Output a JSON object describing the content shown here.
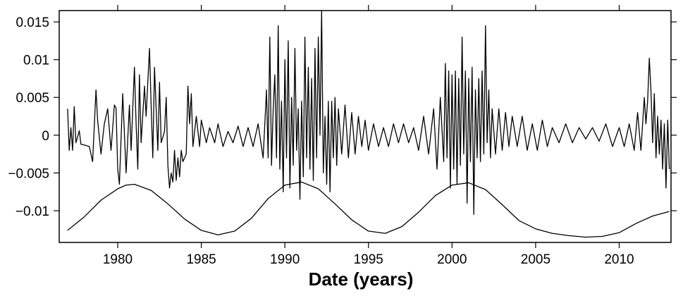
{
  "chart_data": {
    "type": "line",
    "title": "",
    "xlabel": "Date (years)",
    "ylabel": "",
    "xlim": [
      1976.5,
      2013.1
    ],
    "ylim": [
      -0.0142,
      0.0165
    ],
    "x_ticks": [
      1980,
      1985,
      1990,
      1995,
      2000,
      2005,
      2010
    ],
    "x_tick_labels": [
      "1980",
      "1985",
      "1990",
      "1995",
      "2000",
      "2005",
      "2010"
    ],
    "y_ticks": [
      0.015,
      0.01,
      0.005,
      0,
      -0.005,
      -0.01
    ],
    "y_tick_labels": [
      "0.015",
      "0.01",
      "0.005",
      "0",
      "−0.005",
      "−0.01"
    ],
    "grid": false,
    "legend": "none",
    "colors": {
      "line": "#000000",
      "frame": "#000000",
      "background": "#ffffff"
    },
    "series": [
      {
        "points": [
          [
            1977.0,
            0.0035
          ],
          [
            1977.1,
            -0.002
          ],
          [
            1977.2,
            0.001
          ],
          [
            1977.3,
            -0.002
          ],
          [
            1977.4,
            0.0038
          ],
          [
            1977.5,
            -0.001
          ],
          [
            1977.7,
            0.0006
          ],
          [
            1977.8,
            -0.0012
          ],
          [
            1978.0,
            -0.0013
          ],
          [
            1978.3,
            -0.0015
          ],
          [
            1978.5,
            -0.0035
          ],
          [
            1978.7,
            0.006
          ],
          [
            1978.8,
            0.002
          ],
          [
            1979.0,
            -0.0025
          ],
          [
            1979.2,
            0.0015
          ],
          [
            1979.4,
            0.0035
          ],
          [
            1979.6,
            -0.002
          ],
          [
            1979.8,
            0.004
          ],
          [
            1979.9,
            0.0036
          ],
          [
            1980.0,
            -0.0045
          ],
          [
            1980.1,
            -0.0065
          ],
          [
            1980.3,
            0.0055
          ],
          [
            1980.5,
            -0.005
          ],
          [
            1980.7,
            0.004
          ],
          [
            1980.8,
            -0.002
          ],
          [
            1981.0,
            0.009
          ],
          [
            1981.1,
            0.0015
          ],
          [
            1981.2,
            -0.0045
          ],
          [
            1981.3,
            0.008
          ],
          [
            1981.4,
            -0.001
          ],
          [
            1981.6,
            0.0065
          ],
          [
            1981.7,
            0.0025
          ],
          [
            1981.9,
            0.0115
          ],
          [
            1982.0,
            0.004
          ],
          [
            1982.1,
            -0.003
          ],
          [
            1982.2,
            0.009
          ],
          [
            1982.4,
            -0.002
          ],
          [
            1982.5,
            0.007
          ],
          [
            1982.6,
            -0.001
          ],
          [
            1982.8,
            0.0005
          ],
          [
            1982.9,
            0.005
          ],
          [
            1983.0,
            -0.004
          ],
          [
            1983.1,
            -0.007
          ],
          [
            1983.2,
            -0.005
          ],
          [
            1983.3,
            -0.0062
          ],
          [
            1983.4,
            -0.002
          ],
          [
            1983.5,
            -0.006
          ],
          [
            1983.6,
            -0.003
          ],
          [
            1983.7,
            -0.0055
          ],
          [
            1983.8,
            -0.002
          ],
          [
            1983.9,
            -0.0035
          ],
          [
            1984.0,
            -0.003
          ],
          [
            1984.1,
            -0.0025
          ],
          [
            1984.2,
            0.0065
          ],
          [
            1984.3,
            0.0015
          ],
          [
            1984.4,
            0.0055
          ],
          [
            1984.5,
            -0.0015
          ],
          [
            1984.7,
            0.0025
          ],
          [
            1984.9,
            -0.0015
          ],
          [
            1985.0,
            0.002
          ],
          [
            1985.3,
            -0.001
          ],
          [
            1985.5,
            0.001
          ],
          [
            1985.8,
            -0.001
          ],
          [
            1986.0,
            0.0015
          ],
          [
            1986.3,
            -0.0015
          ],
          [
            1986.6,
            0.0005
          ],
          [
            1986.9,
            -0.001
          ],
          [
            1987.2,
            0.0012
          ],
          [
            1987.5,
            -0.0015
          ],
          [
            1987.8,
            0.001
          ],
          [
            1988.1,
            -0.0015
          ],
          [
            1988.4,
            0.0015
          ],
          [
            1988.7,
            -0.003
          ],
          [
            1988.9,
            0.006
          ],
          [
            1989.0,
            -0.003
          ],
          [
            1989.1,
            0.013
          ],
          [
            1989.2,
            -0.004
          ],
          [
            1989.3,
            0.0035
          ],
          [
            1989.4,
            0.008
          ],
          [
            1989.5,
            -0.003
          ],
          [
            1989.6,
            0.0145
          ],
          [
            1989.7,
            -0.0045
          ],
          [
            1989.8,
            0.0045
          ],
          [
            1989.9,
            -0.0075
          ],
          [
            1990.0,
            0.01
          ],
          [
            1990.1,
            -0.003
          ],
          [
            1990.2,
            0.0125
          ],
          [
            1990.3,
            -0.007
          ],
          [
            1990.4,
            0.005
          ],
          [
            1990.5,
            -0.004
          ],
          [
            1990.6,
            0.0115
          ],
          [
            1990.7,
            -0.002
          ],
          [
            1990.8,
            0.0035
          ],
          [
            1990.9,
            -0.0085
          ],
          [
            1991.0,
            0.0045
          ],
          [
            1991.1,
            -0.0055
          ],
          [
            1991.2,
            0.013
          ],
          [
            1991.3,
            -0.003
          ],
          [
            1991.4,
            0.009
          ],
          [
            1991.5,
            -0.0045
          ],
          [
            1991.6,
            0.0075
          ],
          [
            1991.7,
            -0.006
          ],
          [
            1991.8,
            0.0115
          ],
          [
            1991.9,
            -0.003
          ],
          [
            1992.0,
            0.013
          ],
          [
            1992.1,
            0.0
          ],
          [
            1992.2,
            0.0165
          ],
          [
            1992.3,
            -0.005
          ],
          [
            1992.4,
            0.0025
          ],
          [
            1992.5,
            -0.0065
          ],
          [
            1992.6,
            0.0045
          ],
          [
            1992.7,
            -0.0075
          ],
          [
            1992.8,
            0.0045
          ],
          [
            1992.9,
            -0.003
          ],
          [
            1993.0,
            0.005
          ],
          [
            1993.1,
            -0.004
          ],
          [
            1993.2,
            0.0035
          ],
          [
            1993.4,
            -0.0025
          ],
          [
            1993.6,
            0.004
          ],
          [
            1993.8,
            -0.003
          ],
          [
            1994.0,
            0.003
          ],
          [
            1994.2,
            -0.0025
          ],
          [
            1994.4,
            0.0025
          ],
          [
            1994.6,
            -0.0015
          ],
          [
            1994.8,
            0.002
          ],
          [
            1995.0,
            -0.002
          ],
          [
            1995.3,
            0.0015
          ],
          [
            1995.6,
            -0.0015
          ],
          [
            1995.9,
            0.001
          ],
          [
            1996.2,
            -0.0015
          ],
          [
            1996.5,
            0.0015
          ],
          [
            1996.8,
            -0.001
          ],
          [
            1997.1,
            0.0015
          ],
          [
            1997.4,
            -0.001
          ],
          [
            1997.7,
            0.001
          ],
          [
            1998.0,
            -0.002
          ],
          [
            1998.3,
            0.0025
          ],
          [
            1998.6,
            -0.0025
          ],
          [
            1998.9,
            0.0035
          ],
          [
            1999.1,
            -0.0045
          ],
          [
            1999.3,
            0.005
          ],
          [
            1999.5,
            -0.0035
          ],
          [
            1999.6,
            0.0095
          ],
          [
            1999.7,
            -0.003
          ],
          [
            1999.8,
            0.0085
          ],
          [
            1999.9,
            -0.007
          ],
          [
            2000.0,
            0.008
          ],
          [
            2000.1,
            -0.0045
          ],
          [
            2000.2,
            0.0085
          ],
          [
            2000.3,
            -0.0065
          ],
          [
            2000.4,
            0.0075
          ],
          [
            2000.5,
            -0.004
          ],
          [
            2000.6,
            0.013
          ],
          [
            2000.7,
            -0.0025
          ],
          [
            2000.8,
            0.0085
          ],
          [
            2000.9,
            -0.009
          ],
          [
            2001.0,
            0.0075
          ],
          [
            2001.1,
            -0.0035
          ],
          [
            2001.2,
            0.009
          ],
          [
            2001.3,
            -0.0105
          ],
          [
            2001.4,
            0.006
          ],
          [
            2001.5,
            -0.003
          ],
          [
            2001.6,
            0.0075
          ],
          [
            2001.7,
            -0.0035
          ],
          [
            2001.8,
            0.0085
          ],
          [
            2001.9,
            -0.0025
          ],
          [
            2002.0,
            0.0145
          ],
          [
            2002.1,
            -0.001
          ],
          [
            2002.2,
            0.006
          ],
          [
            2002.3,
            -0.003
          ],
          [
            2002.4,
            0.0035
          ],
          [
            2002.6,
            -0.0025
          ],
          [
            2002.8,
            0.0035
          ],
          [
            2003.0,
            -0.002
          ],
          [
            2003.2,
            0.003
          ],
          [
            2003.4,
            -0.0015
          ],
          [
            2003.6,
            0.0025
          ],
          [
            2003.9,
            -0.0015
          ],
          [
            2004.2,
            0.0025
          ],
          [
            2004.5,
            -0.002
          ],
          [
            2004.8,
            0.0015
          ],
          [
            2005.1,
            -0.002
          ],
          [
            2005.4,
            0.002
          ],
          [
            2005.7,
            -0.0015
          ],
          [
            2006.0,
            0.001
          ],
          [
            2006.4,
            -0.001
          ],
          [
            2006.8,
            0.0015
          ],
          [
            2007.2,
            -0.001
          ],
          [
            2007.6,
            0.001
          ],
          [
            2008.0,
            -0.0005
          ],
          [
            2008.4,
            0.001
          ],
          [
            2008.8,
            -0.0008
          ],
          [
            2009.2,
            0.0015
          ],
          [
            2009.6,
            -0.0015
          ],
          [
            2010.0,
            0.001
          ],
          [
            2010.3,
            -0.0015
          ],
          [
            2010.6,
            0.0015
          ],
          [
            2010.9,
            -0.002
          ],
          [
            2011.1,
            0.003
          ],
          [
            2011.3,
            -0.002
          ],
          [
            2011.5,
            0.005
          ],
          [
            2011.6,
            0.0015
          ],
          [
            2011.7,
            0.0045
          ],
          [
            2011.8,
            0.0102
          ],
          [
            2011.9,
            0.006
          ],
          [
            2012.0,
            -0.001
          ],
          [
            2012.1,
            0.0055
          ],
          [
            2012.2,
            -0.003
          ],
          [
            2012.3,
            0.0025
          ],
          [
            2012.4,
            -0.0025
          ],
          [
            2012.5,
            0.002
          ],
          [
            2012.6,
            -0.0045
          ],
          [
            2012.7,
            0.0015
          ],
          [
            2012.8,
            -0.007
          ],
          [
            2012.9,
            0.002
          ],
          [
            2013.0,
            -0.0045
          ]
        ]
      },
      {
        "points": [
          [
            1977.0,
            -0.0126
          ],
          [
            1978.0,
            -0.0108
          ],
          [
            1979.0,
            -0.0086
          ],
          [
            1980.0,
            -0.0071
          ],
          [
            1980.5,
            -0.0066
          ],
          [
            1981.0,
            -0.0065
          ],
          [
            1982.0,
            -0.0073
          ],
          [
            1983.0,
            -0.0091
          ],
          [
            1984.0,
            -0.0111
          ],
          [
            1985.0,
            -0.0126
          ],
          [
            1986.0,
            -0.0132
          ],
          [
            1987.0,
            -0.0127
          ],
          [
            1988.0,
            -0.011
          ],
          [
            1989.0,
            -0.0084
          ],
          [
            1990.0,
            -0.0066
          ],
          [
            1991.0,
            -0.0062
          ],
          [
            1992.0,
            -0.0071
          ],
          [
            1993.0,
            -0.0091
          ],
          [
            1994.0,
            -0.0112
          ],
          [
            1995.0,
            -0.0127
          ],
          [
            1996.0,
            -0.013
          ],
          [
            1997.0,
            -0.0121
          ],
          [
            1998.0,
            -0.0102
          ],
          [
            1999.0,
            -0.008
          ],
          [
            2000.0,
            -0.0066
          ],
          [
            2001.0,
            -0.0063
          ],
          [
            2002.0,
            -0.0072
          ],
          [
            2003.0,
            -0.0092
          ],
          [
            2004.0,
            -0.0113
          ],
          [
            2005.0,
            -0.0124
          ],
          [
            2006.0,
            -0.013
          ],
          [
            2007.0,
            -0.0133
          ],
          [
            2008.0,
            -0.0135
          ],
          [
            2009.0,
            -0.0134
          ],
          [
            2010.0,
            -0.0129
          ],
          [
            2011.0,
            -0.0117
          ],
          [
            2012.0,
            -0.0107
          ],
          [
            2013.0,
            -0.0101
          ]
        ]
      }
    ]
  }
}
